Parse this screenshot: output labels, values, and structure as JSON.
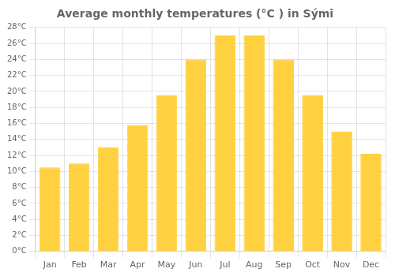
{
  "chart_data": {
    "type": "bar",
    "title": "Average monthly temperatures (°C ) in Sými",
    "categories": [
      "Jan",
      "Feb",
      "Mar",
      "Apr",
      "May",
      "Jun",
      "Jul",
      "Aug",
      "Sep",
      "Oct",
      "Nov",
      "Dec"
    ],
    "values": [
      10.5,
      11.0,
      13.0,
      15.8,
      19.5,
      24.0,
      27.0,
      27.0,
      24.0,
      19.5,
      15.0,
      12.2
    ],
    "color": "#FFD040",
    "ylim": [
      0,
      28
    ],
    "yticks": [
      {
        "value": 0,
        "label": "0°C"
      },
      {
        "value": 2,
        "label": "2°C"
      },
      {
        "value": 4,
        "label": "4°C"
      },
      {
        "value": 6,
        "label": "6°C"
      },
      {
        "value": 8,
        "label": "8°C"
      },
      {
        "value": 10,
        "label": "10°C"
      },
      {
        "value": 12,
        "label": "12°C"
      },
      {
        "value": 14,
        "label": "14°C"
      },
      {
        "value": 16,
        "label": "16°C"
      },
      {
        "value": 18,
        "label": "18°C"
      },
      {
        "value": 20,
        "label": "20°C"
      },
      {
        "value": 22,
        "label": "22°C"
      },
      {
        "value": 24,
        "label": "24°C"
      },
      {
        "value": 26,
        "label": "26°C"
      },
      {
        "value": 28,
        "label": "28°C"
      }
    ],
    "grid": true
  }
}
